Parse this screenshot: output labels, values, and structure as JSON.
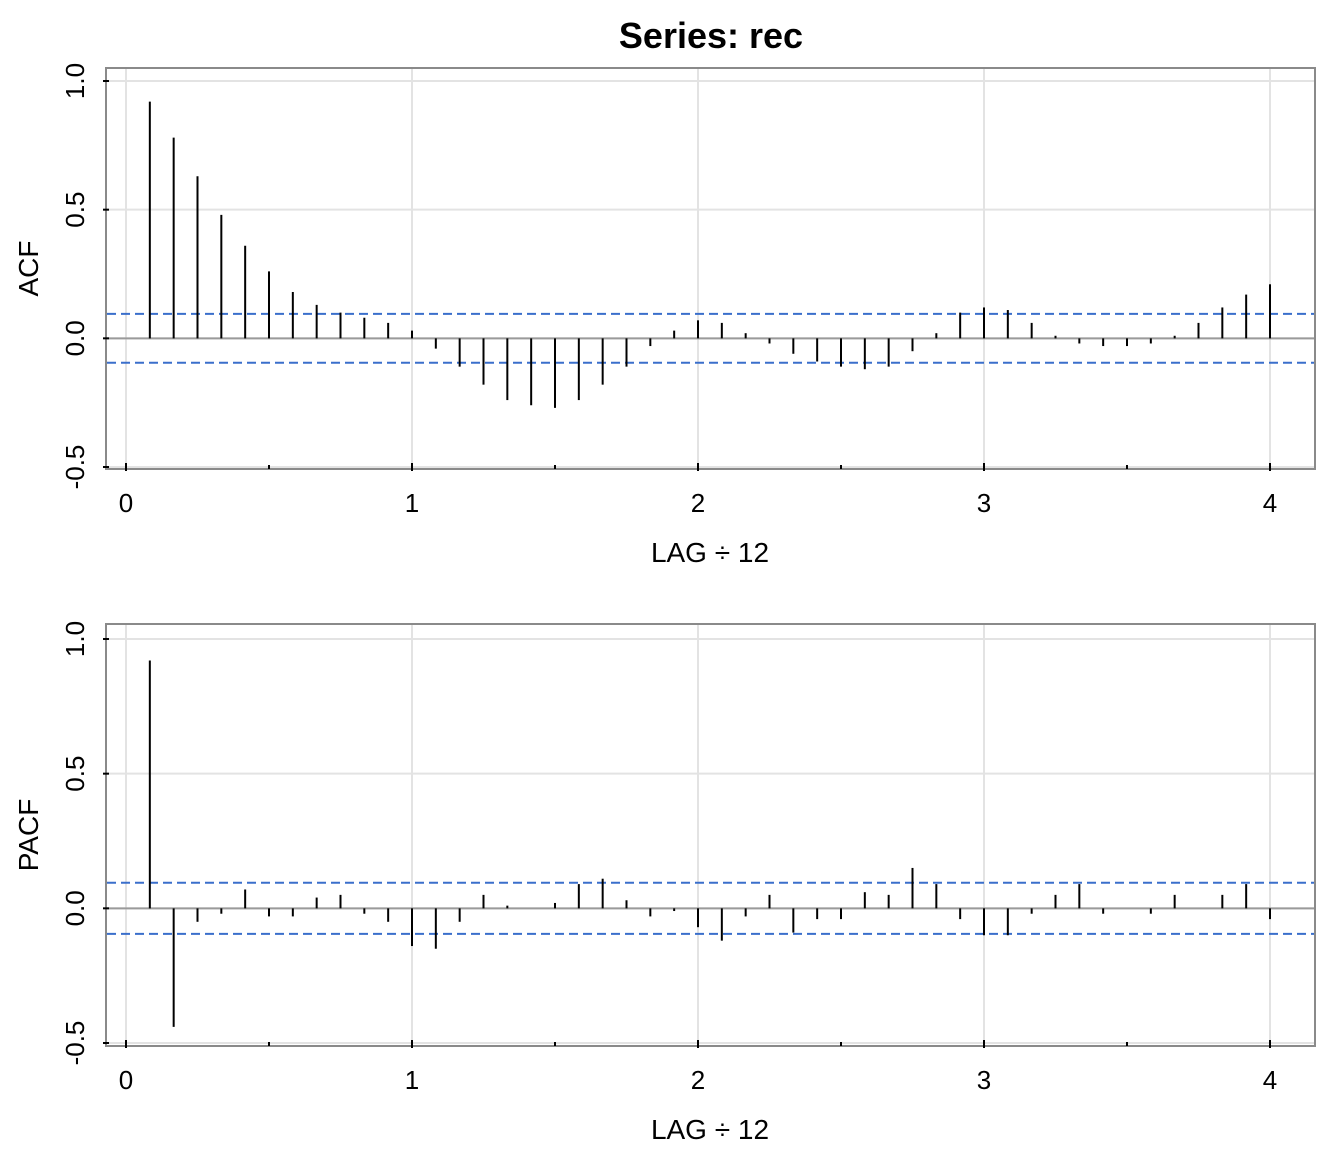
{
  "title": "Series:  rec",
  "colors": {
    "grid": "#e3e3e3",
    "frame": "#8a8a8a",
    "zero_line": "#9a9a9a",
    "bars": "#000000",
    "confidence_band": "#3a6fcb"
  },
  "chart_data": [
    {
      "type": "bar",
      "ylabel": "ACF",
      "xlabel": "LAG ÷ 12",
      "xlim": [
        0,
        4
      ],
      "ylim": [
        -0.5,
        1.0
      ],
      "xticks": [
        "0",
        "1",
        "2",
        "3",
        "4"
      ],
      "yticks": [
        "-0.5",
        "0.0",
        "0.5",
        "1.0"
      ],
      "grid": true,
      "confidence_bound": 0.095,
      "lag_step": 0.0833333,
      "values": [
        0.92,
        0.78,
        0.63,
        0.48,
        0.36,
        0.26,
        0.18,
        0.13,
        0.1,
        0.08,
        0.06,
        0.03,
        -0.04,
        -0.11,
        -0.18,
        -0.24,
        -0.26,
        -0.27,
        -0.24,
        -0.18,
        -0.11,
        -0.03,
        0.03,
        0.07,
        0.06,
        0.02,
        -0.02,
        -0.06,
        -0.09,
        -0.11,
        -0.12,
        -0.11,
        -0.05,
        0.02,
        0.1,
        0.12,
        0.11,
        0.06,
        0.01,
        -0.02,
        -0.03,
        -0.03,
        -0.02,
        0.01,
        0.06,
        0.12,
        0.17,
        0.21
      ]
    },
    {
      "type": "bar",
      "ylabel": "PACF",
      "xlabel": "LAG ÷ 12",
      "xlim": [
        0,
        4
      ],
      "ylim": [
        -0.5,
        1.0
      ],
      "xticks": [
        "0",
        "1",
        "2",
        "3",
        "4"
      ],
      "yticks": [
        "-0.5",
        "0.0",
        "0.5",
        "1.0"
      ],
      "grid": true,
      "confidence_bound": 0.095,
      "lag_step": 0.0833333,
      "values": [
        0.92,
        -0.44,
        -0.05,
        -0.02,
        0.07,
        -0.03,
        -0.03,
        0.04,
        0.05,
        -0.02,
        -0.05,
        -0.14,
        -0.15,
        -0.05,
        0.05,
        0.01,
        0.0,
        0.02,
        0.09,
        0.11,
        0.03,
        -0.03,
        -0.01,
        -0.07,
        -0.12,
        -0.03,
        0.05,
        -0.09,
        -0.04,
        -0.04,
        0.06,
        0.05,
        0.15,
        0.09,
        -0.04,
        -0.1,
        -0.1,
        -0.02,
        0.05,
        0.09,
        -0.02,
        0.0,
        -0.02,
        0.05,
        0.0,
        0.05,
        0.09,
        -0.04
      ]
    }
  ]
}
